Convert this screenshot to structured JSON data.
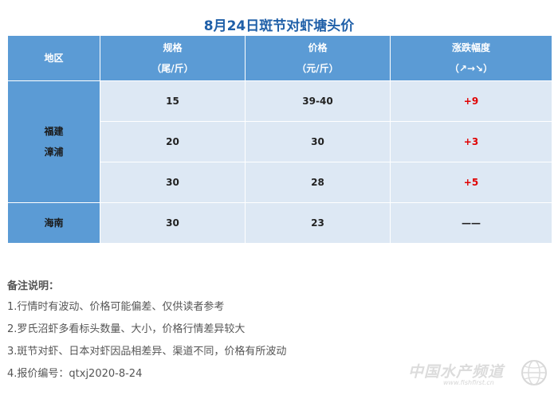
{
  "title": "8月24日斑节对虾塘头价",
  "table": {
    "headers": [
      {
        "line1": "地区",
        "line2": ""
      },
      {
        "line1": "规格",
        "line2": "（尾/斤）"
      },
      {
        "line1": "价格",
        "line2": "（元/斤）"
      },
      {
        "line1": "涨跌幅度",
        "line2": "（↗→↘）"
      }
    ],
    "groups": [
      {
        "region_line1": "福建",
        "region_line2": "漳浦",
        "rows": [
          {
            "spec": "15",
            "price": "39-40",
            "change": "+9"
          },
          {
            "spec": "20",
            "price": "30",
            "change": "+3"
          },
          {
            "spec": "30",
            "price": "28",
            "change": "+5"
          }
        ]
      },
      {
        "region_line1": "海南",
        "region_line2": "",
        "rows": [
          {
            "spec": "30",
            "price": "23",
            "change": "——"
          }
        ]
      }
    ]
  },
  "notes": {
    "title": "备注说明：",
    "items": [
      "1.行情时有波动、价格可能偏差、仅供读者参考",
      "2.罗氏沼虾多看标头数量、大小，价格行情差异较大",
      "3.斑节对虾、日本对虾因品相差异、渠道不同，价格有所波动",
      "4.报价编号：qtxj2020-8-24"
    ]
  },
  "watermark": {
    "logo": "中国水产频道",
    "url": "www.fishfirst.cn",
    "icon": "globe-logo-icon"
  },
  "colors": {
    "title": "#1f5fa8",
    "header_bg": "#5b9bd5",
    "cell_bg": "#dde8f4",
    "up": "#e00000"
  }
}
